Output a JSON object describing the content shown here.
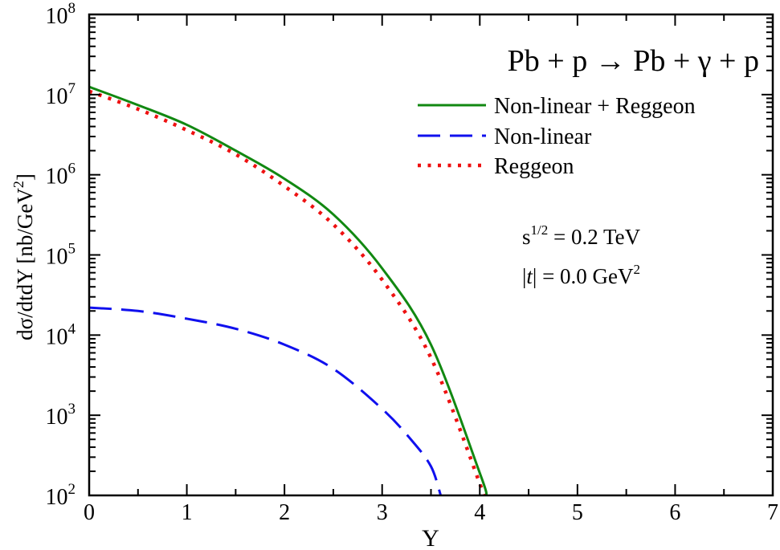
{
  "chart_data": {
    "type": "line",
    "title": "Pb + p → Pb + γ + p",
    "xlabel": "Y",
    "ylabel": "dσ/dtdY [nb/GeV",
    "ylabel_sup": "2",
    "ylabel_end": "]",
    "xlim": [
      0,
      7
    ],
    "ylim": [
      100,
      100000000
    ],
    "yscale": "log",
    "grid": false,
    "legend_position": "top-right",
    "x_ticks": [
      "0",
      "1",
      "2",
      "3",
      "4",
      "5",
      "6",
      "7"
    ],
    "y_ticks": [
      {
        "base": "10",
        "exp": "2"
      },
      {
        "base": "10",
        "exp": "3"
      },
      {
        "base": "10",
        "exp": "4"
      },
      {
        "base": "10",
        "exp": "5"
      },
      {
        "base": "10",
        "exp": "6"
      },
      {
        "base": "10",
        "exp": "7"
      },
      {
        "base": "10",
        "exp": "8"
      }
    ],
    "annotations": {
      "energy": {
        "prefix": "s",
        "sup": "1/2",
        "rest": " = 0.2 TeV"
      },
      "t": {
        "prefix": "|",
        "italic": "t",
        "rest": "| = 0.0 GeV",
        "sup": "2"
      }
    },
    "series": [
      {
        "name": "Non-linear + Reggeon",
        "color": "#118811",
        "style": "solid",
        "x": [
          0,
          0.5,
          1,
          1.5,
          2,
          2.5,
          3,
          3.5,
          4,
          4.07
        ],
        "y": [
          12500000,
          7400000,
          4200000,
          2000000,
          890000,
          320000,
          68000,
          7600,
          190,
          100
        ]
      },
      {
        "name": "Non-linear",
        "color": "#1010ee",
        "style": "dashed",
        "x": [
          0,
          0.5,
          1,
          1.5,
          2,
          2.5,
          3,
          3.3,
          3.5,
          3.6
        ],
        "y": [
          22000,
          20000,
          16000,
          12000,
          7600,
          3800,
          1200,
          490,
          230,
          100
        ]
      },
      {
        "name": "Reggeon",
        "color": "#ee1111",
        "style": "dotted",
        "x": [
          0,
          0.5,
          1,
          1.5,
          2,
          2.5,
          3,
          3.5,
          4,
          4.02
        ],
        "y": [
          11000000,
          6600000,
          3600000,
          1800000,
          720000,
          240000,
          49000,
          5200,
          140,
          100
        ]
      }
    ]
  }
}
